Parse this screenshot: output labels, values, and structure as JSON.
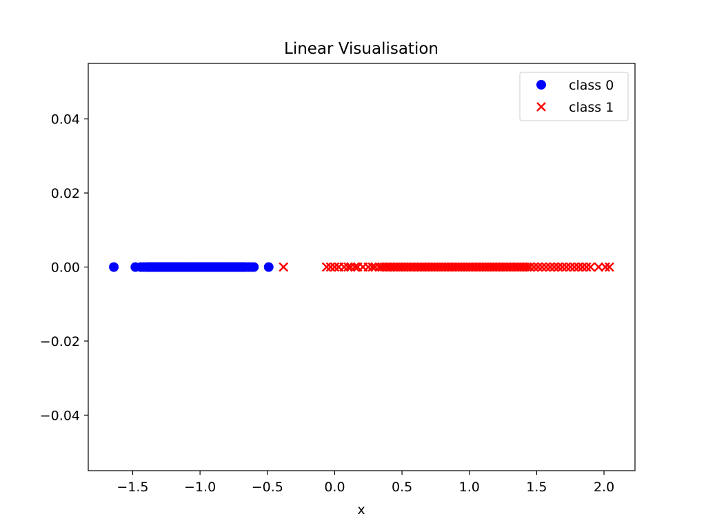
{
  "chart_data": {
    "type": "scatter",
    "title": "Linear Visualisation",
    "xlabel": "x",
    "ylabel": "",
    "xlim": [
      -1.83,
      2.23
    ],
    "ylim": [
      -0.055,
      0.055
    ],
    "x_ticks": [
      -1.5,
      -1.0,
      -0.5,
      0.0,
      0.5,
      1.0,
      1.5,
      2.0
    ],
    "x_tick_labels": [
      "−1.5",
      "−1.0",
      "−0.5",
      "0.0",
      "0.5",
      "1.0",
      "1.5",
      "2.0"
    ],
    "y_ticks": [
      0.04,
      0.02,
      0.0,
      -0.02,
      -0.04
    ],
    "y_tick_labels": [
      "0.04",
      "0.02",
      "0.00",
      "−0.02",
      "−0.04"
    ],
    "grid": false,
    "legend_position": "top-right",
    "series": [
      {
        "name": "class 0",
        "marker": "circle",
        "color": "#0000ff",
        "x": [
          -1.64,
          -1.48,
          -1.44,
          -1.42,
          -1.4,
          -1.39,
          -1.38,
          -1.37,
          -1.36,
          -1.35,
          -1.34,
          -1.33,
          -1.32,
          -1.31,
          -1.3,
          -1.29,
          -1.28,
          -1.27,
          -1.26,
          -1.25,
          -1.24,
          -1.23,
          -1.22,
          -1.21,
          -1.2,
          -1.19,
          -1.18,
          -1.17,
          -1.16,
          -1.15,
          -1.14,
          -1.13,
          -1.12,
          -1.11,
          -1.1,
          -1.09,
          -1.08,
          -1.07,
          -1.06,
          -1.05,
          -1.04,
          -1.03,
          -1.02,
          -1.01,
          -1.0,
          -0.99,
          -0.98,
          -0.97,
          -0.96,
          -0.95,
          -0.94,
          -0.93,
          -0.92,
          -0.91,
          -0.9,
          -0.89,
          -0.88,
          -0.87,
          -0.86,
          -0.85,
          -0.84,
          -0.83,
          -0.82,
          -0.81,
          -0.8,
          -0.79,
          -0.78,
          -0.77,
          -0.76,
          -0.75,
          -0.74,
          -0.73,
          -0.72,
          -0.71,
          -0.7,
          -0.69,
          -0.68,
          -0.67,
          -0.66,
          -0.64,
          -0.62,
          -0.6,
          -0.49
        ],
        "y": [
          0,
          0,
          0,
          0,
          0,
          0,
          0,
          0,
          0,
          0,
          0,
          0,
          0,
          0,
          0,
          0,
          0,
          0,
          0,
          0,
          0,
          0,
          0,
          0,
          0,
          0,
          0,
          0,
          0,
          0,
          0,
          0,
          0,
          0,
          0,
          0,
          0,
          0,
          0,
          0,
          0,
          0,
          0,
          0,
          0,
          0,
          0,
          0,
          0,
          0,
          0,
          0,
          0,
          0,
          0,
          0,
          0,
          0,
          0,
          0,
          0,
          0,
          0,
          0,
          0,
          0,
          0,
          0,
          0,
          0,
          0,
          0,
          0,
          0,
          0,
          0,
          0,
          0,
          0,
          0,
          0,
          0,
          0
        ]
      },
      {
        "name": "class 1",
        "marker": "x",
        "color": "#ff0000",
        "x": [
          -0.38,
          -0.06,
          -0.03,
          0.0,
          0.03,
          0.07,
          0.1,
          0.12,
          0.15,
          0.17,
          0.21,
          0.25,
          0.28,
          0.3,
          0.33,
          0.35,
          0.37,
          0.39,
          0.41,
          0.43,
          0.45,
          0.47,
          0.49,
          0.51,
          0.53,
          0.55,
          0.57,
          0.59,
          0.61,
          0.63,
          0.65,
          0.67,
          0.69,
          0.71,
          0.73,
          0.75,
          0.77,
          0.79,
          0.81,
          0.83,
          0.85,
          0.87,
          0.89,
          0.91,
          0.93,
          0.95,
          0.97,
          0.99,
          1.01,
          1.03,
          1.05,
          1.07,
          1.09,
          1.11,
          1.13,
          1.15,
          1.17,
          1.19,
          1.21,
          1.23,
          1.25,
          1.27,
          1.29,
          1.31,
          1.33,
          1.35,
          1.37,
          1.39,
          1.41,
          1.43,
          1.45,
          1.48,
          1.51,
          1.54,
          1.57,
          1.6,
          1.63,
          1.66,
          1.69,
          1.72,
          1.75,
          1.78,
          1.81,
          1.84,
          1.87,
          1.9,
          1.96,
          2.01,
          2.04
        ],
        "y": [
          0,
          0,
          0,
          0,
          0,
          0,
          0,
          0,
          0,
          0,
          0,
          0,
          0,
          0,
          0,
          0,
          0,
          0,
          0,
          0,
          0,
          0,
          0,
          0,
          0,
          0,
          0,
          0,
          0,
          0,
          0,
          0,
          0,
          0,
          0,
          0,
          0,
          0,
          0,
          0,
          0,
          0,
          0,
          0,
          0,
          0,
          0,
          0,
          0,
          0,
          0,
          0,
          0,
          0,
          0,
          0,
          0,
          0,
          0,
          0,
          0,
          0,
          0,
          0,
          0,
          0,
          0,
          0,
          0,
          0,
          0,
          0,
          0,
          0,
          0,
          0,
          0,
          0,
          0,
          0,
          0,
          0,
          0,
          0,
          0,
          0,
          0,
          0,
          0
        ]
      }
    ]
  }
}
